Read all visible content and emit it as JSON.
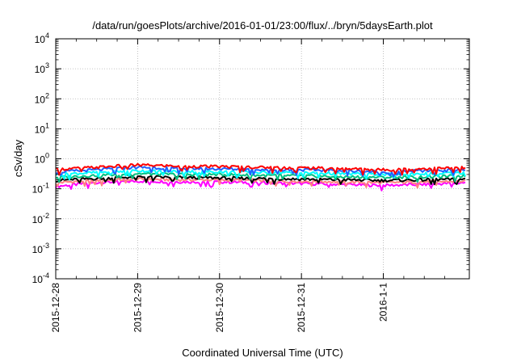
{
  "chart_data": {
    "type": "line",
    "title": "/data/run/goesPlots/archive/2016-01-01/23:00/flux/../bryn/5daysEarth.plot",
    "xlabel": "Coordinated Universal Time (UTC)",
    "ylabel": "cSv/day",
    "x_tick_labels": [
      "2015-12-28",
      "2015-12-29",
      "2015-12-30",
      "2015-12-31",
      "2016-1-1"
    ],
    "x_range_days": [
      0,
      5.05
    ],
    "y_scale": "log",
    "ylim": [
      0.0001,
      10000
    ],
    "y_ticks": [
      {
        "base": "10",
        "exp": "-4"
      },
      {
        "base": "10",
        "exp": "-3"
      },
      {
        "base": "10",
        "exp": "-2"
      },
      {
        "base": "10",
        "exp": "-1"
      },
      {
        "base": "10",
        "exp": "0"
      },
      {
        "base": "10",
        "exp": "1"
      },
      {
        "base": "10",
        "exp": "2"
      },
      {
        "base": "10",
        "exp": "3"
      },
      {
        "base": "10",
        "exp": "4"
      }
    ],
    "grid": true,
    "series": [
      {
        "color": "#ff00ff",
        "x": [
          0,
          0.5,
          1,
          1.5,
          2,
          2.5,
          3,
          3.5,
          4,
          4.5,
          5
        ],
        "y": [
          0.12,
          0.16,
          0.18,
          0.17,
          0.17,
          0.16,
          0.15,
          0.14,
          0.13,
          0.14,
          0.16
        ]
      },
      {
        "color": "#ff8080",
        "x": [
          0,
          0.5,
          1,
          1.5,
          2,
          2.5,
          3,
          3.5,
          4,
          4.5,
          5
        ],
        "y": [
          0.16,
          0.19,
          0.21,
          0.2,
          0.2,
          0.19,
          0.18,
          0.17,
          0.16,
          0.17,
          0.18
        ]
      },
      {
        "color": "#000000",
        "x": [
          0,
          0.5,
          1,
          1.5,
          2,
          2.5,
          3,
          3.5,
          4,
          4.5,
          5
        ],
        "y": [
          0.19,
          0.22,
          0.25,
          0.24,
          0.23,
          0.22,
          0.21,
          0.2,
          0.19,
          0.2,
          0.21
        ]
      },
      {
        "color": "#00c080",
        "x": [
          0,
          0.5,
          1,
          1.5,
          2,
          2.5,
          3,
          3.5,
          4,
          4.5,
          5
        ],
        "y": [
          0.24,
          0.28,
          0.32,
          0.3,
          0.3,
          0.28,
          0.27,
          0.25,
          0.24,
          0.25,
          0.27
        ]
      },
      {
        "color": "#00ffff",
        "x": [
          0,
          0.5,
          1,
          1.5,
          2,
          2.5,
          3,
          3.5,
          4,
          4.5,
          5
        ],
        "y": [
          0.3,
          0.35,
          0.4,
          0.38,
          0.37,
          0.35,
          0.34,
          0.32,
          0.3,
          0.32,
          0.34
        ]
      },
      {
        "color": "#2060ff",
        "x": [
          0,
          0.5,
          1,
          1.5,
          2,
          2.5,
          3,
          3.5,
          4,
          4.5,
          5
        ],
        "y": [
          0.36,
          0.43,
          0.52,
          0.48,
          0.46,
          0.44,
          0.43,
          0.4,
          0.36,
          0.4,
          0.42
        ]
      },
      {
        "color": "#ff0000",
        "x": [
          0,
          0.5,
          1,
          1.5,
          2,
          2.5,
          3,
          3.5,
          4,
          4.5,
          5
        ],
        "y": [
          0.44,
          0.52,
          0.62,
          0.57,
          0.55,
          0.52,
          0.5,
          0.47,
          0.43,
          0.47,
          0.5
        ]
      }
    ]
  }
}
